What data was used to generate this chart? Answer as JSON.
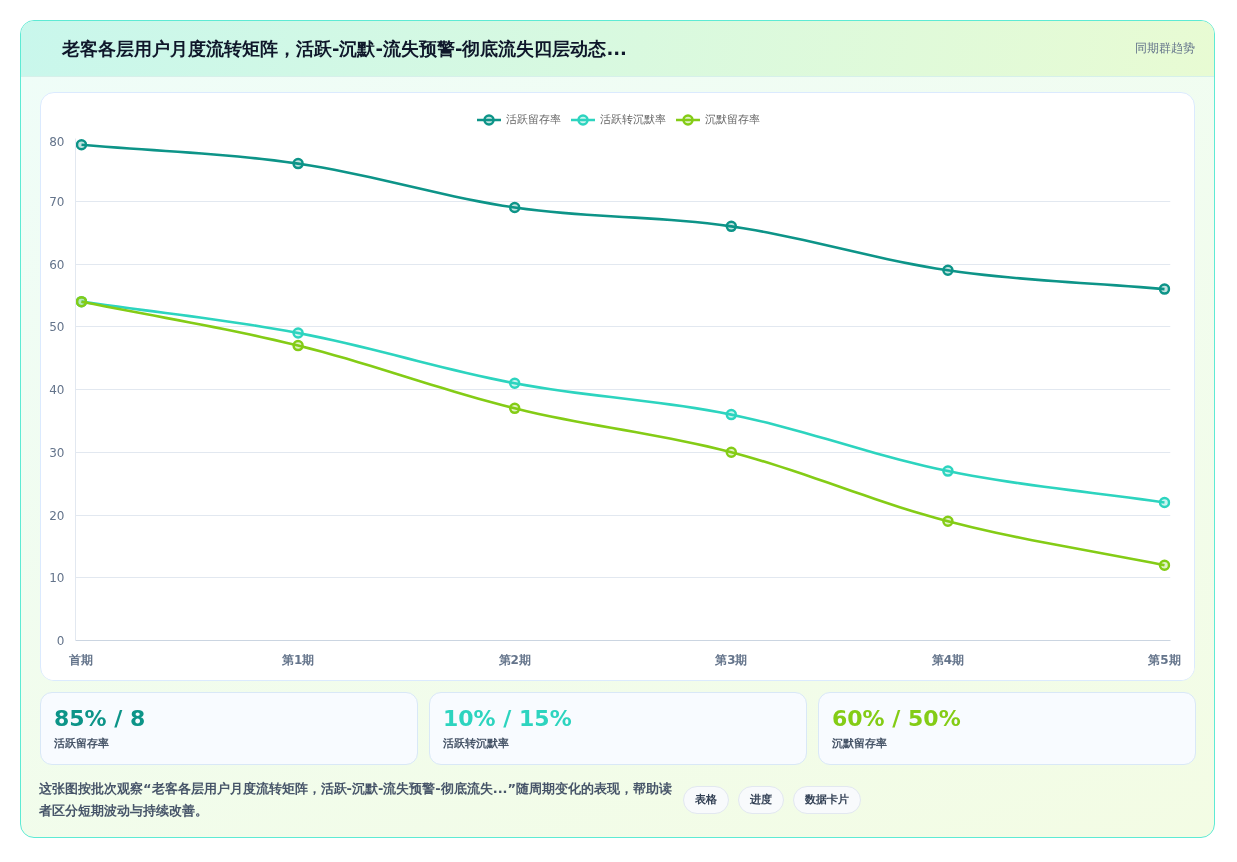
{
  "chart_data": {
    "type": "line",
    "title": "老客各层用户月度流转矩阵，活跃-沉默-流失预警-彻底流失四层动态...",
    "subtitle": "同期群趋势",
    "categories": [
      "首期",
      "第1期",
      "第2期",
      "第3期",
      "第4期",
      "第5期"
    ],
    "series": [
      {
        "name": "活跃留存率",
        "color": "#0d9488",
        "values": [
          79,
          76,
          69,
          66,
          59,
          56
        ]
      },
      {
        "name": "活跃转沉默率",
        "color": "#2dd4bf",
        "values": [
          54,
          49,
          41,
          36,
          27,
          22
        ]
      },
      {
        "name": "沉默留存率",
        "color": "#84cc16",
        "values": [
          54,
          47,
          37,
          30,
          19,
          12
        ]
      }
    ],
    "ylim": [
      0,
      80
    ],
    "yticks": [
      0,
      10,
      20,
      30,
      40,
      50,
      60,
      70,
      80
    ],
    "grid": "y",
    "legend": "top",
    "marker": "circle",
    "line_style": "solid",
    "annotations": [
      "85% / 8",
      "10% / 15%",
      "60% / 50%",
      "这张图按批次观察“老客各层用户月度流转矩阵，活跃-沉默-流失预警-彻底流失...”随周期变化的表现，帮助读者区分短期波动与持续改善。",
      "表格",
      "进度",
      "数据卡片"
    ]
  }
}
